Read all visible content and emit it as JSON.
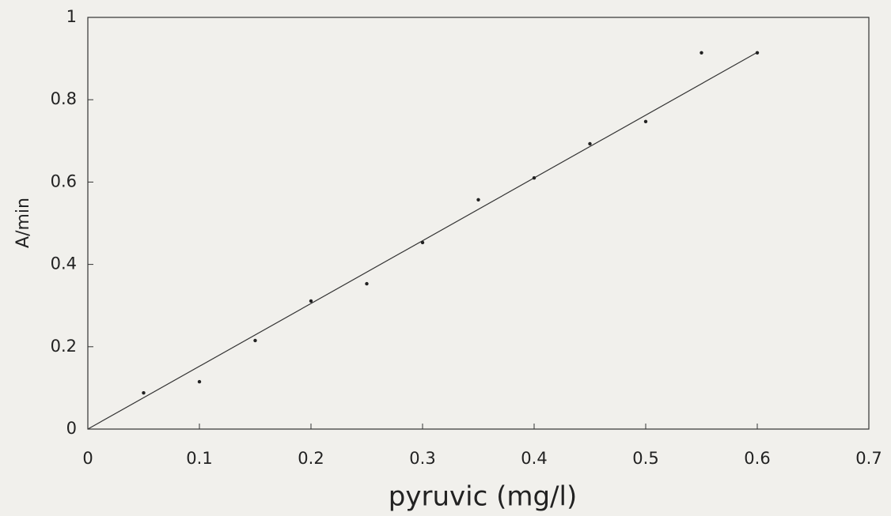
{
  "chart_data": {
    "type": "scatter",
    "x_label": "pyruvic (mg/l)",
    "y_label": "A/min",
    "x": [
      0.05,
      0.1,
      0.15,
      0.2,
      0.25,
      0.3,
      0.35,
      0.4,
      0.45,
      0.5,
      0.55,
      0.6
    ],
    "values": [
      0.088,
      0.115,
      0.215,
      0.311,
      0.353,
      0.453,
      0.557,
      0.61,
      0.693,
      0.747,
      0.914,
      0.914
    ],
    "color": "#222222",
    "fit_line": {
      "x": [
        0,
        0.6
      ],
      "values": [
        0,
        0.915
      ],
      "color": "#333333"
    },
    "xlim": [
      0,
      0.7
    ],
    "ylim": [
      0,
      1
    ],
    "xticks": [
      0,
      0.1,
      0.2,
      0.3,
      0.4,
      0.5,
      0.6,
      0.7
    ],
    "yticks": [
      0,
      0.2,
      0.4,
      0.6,
      0.8,
      1
    ],
    "grid": false
  }
}
